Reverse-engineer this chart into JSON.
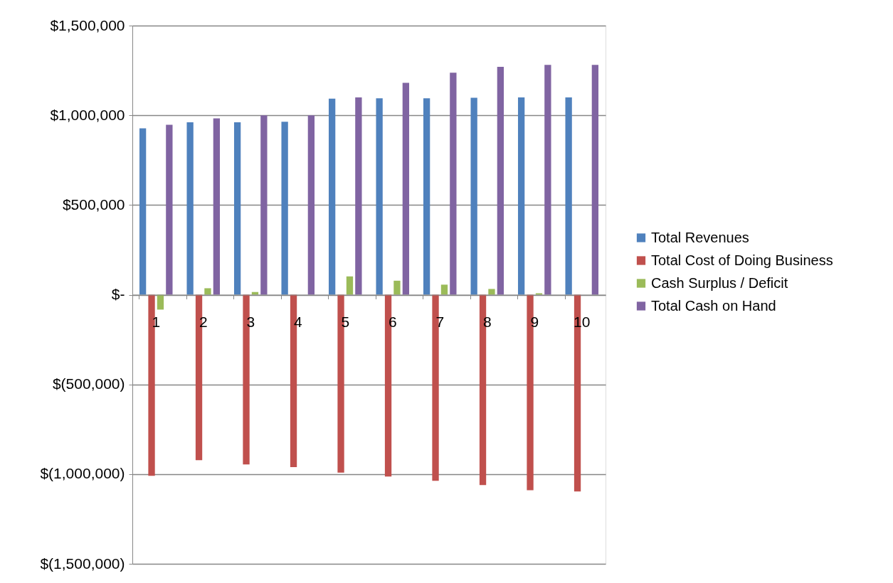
{
  "chart_data": {
    "type": "bar",
    "categories": [
      "1",
      "2",
      "3",
      "4",
      "5",
      "6",
      "7",
      "8",
      "9",
      "10"
    ],
    "series": [
      {
        "name": "Total Revenues",
        "color": "#4f81bd",
        "values": [
          927000,
          961000,
          961000,
          964000,
          1093000,
          1095000,
          1095000,
          1098000,
          1100000,
          1100000
        ]
      },
      {
        "name": "Total Cost of Doing Business",
        "color": "#c0504d",
        "values": [
          -1010000,
          -922000,
          -946000,
          -961000,
          -992000,
          -1014000,
          -1037000,
          -1061000,
          -1090000,
          -1097000
        ]
      },
      {
        "name": "Cash Surplus / Deficit",
        "color": "#9bbb59",
        "values": [
          -83000,
          36000,
          15000,
          null,
          102000,
          78000,
          56000,
          32000,
          8000,
          null
        ]
      },
      {
        "name": "Total Cash on Hand",
        "color": "#8064a2",
        "values": [
          947000,
          983000,
          1000000,
          1000000,
          1100000,
          1181000,
          1237000,
          1270000,
          1281000,
          1281000
        ]
      }
    ],
    "ylim": [
      -1500000,
      1500000
    ],
    "yticks": [
      {
        "value": -1500000,
        "label": "$(1,500,000)"
      },
      {
        "value": -1000000,
        "label": "$(1,000,000)"
      },
      {
        "value": -500000,
        "label": "$(500,000)"
      },
      {
        "value": 0,
        "label": "$-"
      },
      {
        "value": 500000,
        "label": "$500,000"
      },
      {
        "value": 1000000,
        "label": "$1,000,000"
      },
      {
        "value": 1500000,
        "label": "$1,500,000"
      }
    ],
    "grid": "y",
    "legend": "right"
  }
}
